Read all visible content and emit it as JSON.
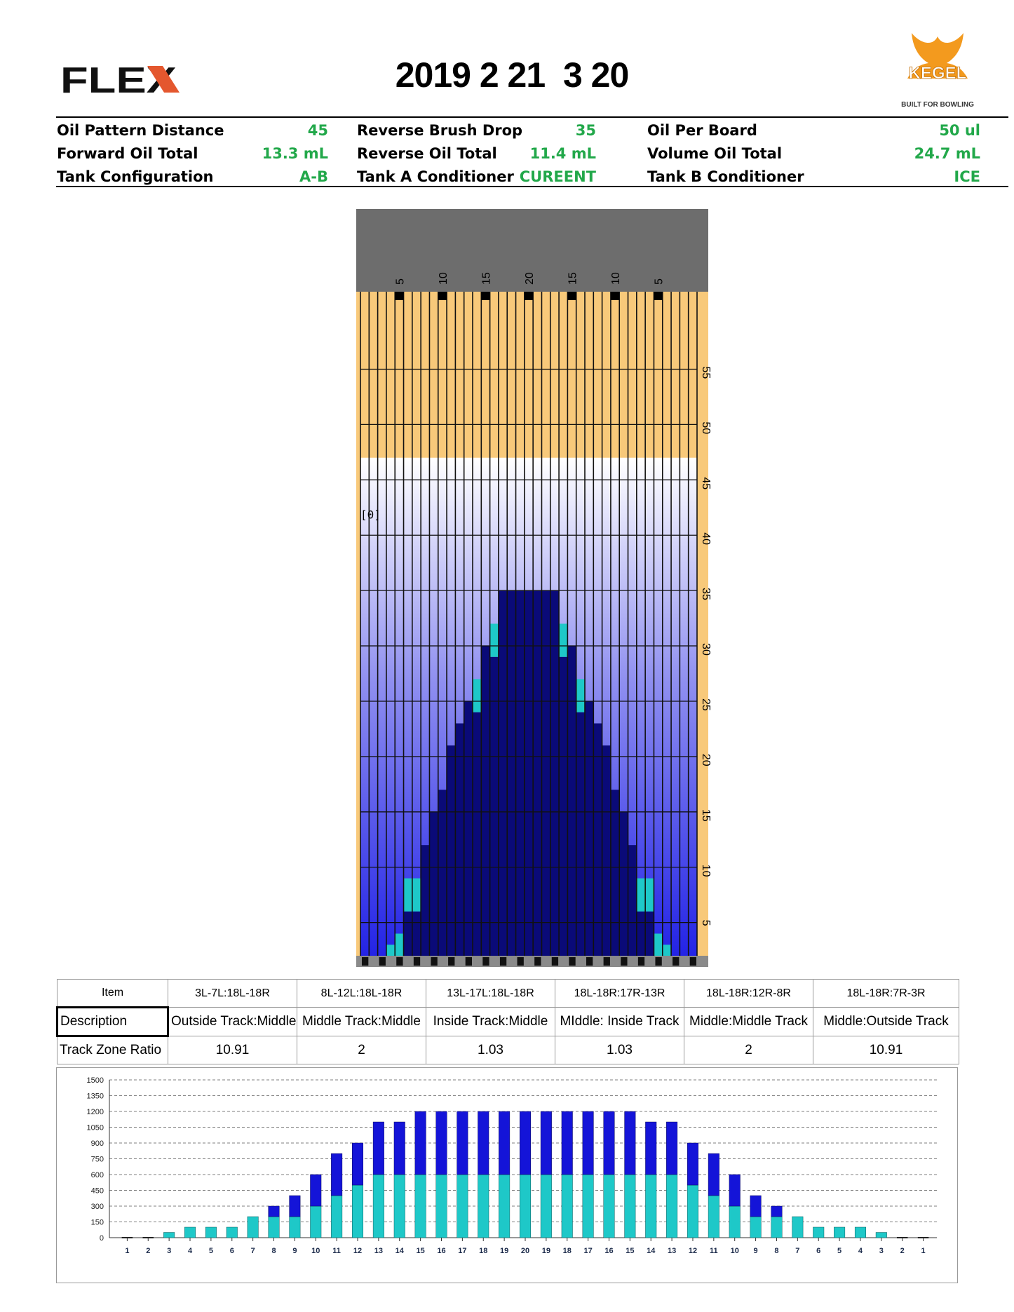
{
  "header": {
    "brand_left": "FLEX",
    "title": "2019 2 21  3 20",
    "brand_right": "KEGEL",
    "brand_right_tagline": "BUILT FOR BOWLING"
  },
  "summary": [
    {
      "label": "Oil Pattern Distance",
      "value": "45"
    },
    {
      "label": "Reverse Brush Drop",
      "value": "35"
    },
    {
      "label": "Oil Per Board",
      "value": "50 ul"
    },
    {
      "label": "Forward Oil Total",
      "value": "13.3 mL"
    },
    {
      "label": "Reverse Oil Total",
      "value": "11.4 mL"
    },
    {
      "label": "Volume Oil Total",
      "value": "24.7 mL"
    },
    {
      "label": "Tank Configuration",
      "value": "A-B"
    },
    {
      "label": "Tank A Conditioner",
      "value": "CUREENT"
    },
    {
      "label": "Tank B Conditioner",
      "value": "ICE"
    }
  ],
  "colors": {
    "accent_value": "#22a84a",
    "dry_lane": "#f8c97a",
    "header_gray": "#6d6d6d",
    "oil_heavy": "#0a0a78",
    "oil_track": "#1414d8",
    "oil_light": "#1ec8c8",
    "forward_bar": "#1ec8c8",
    "reverse_bar": "#1414d8"
  },
  "chart_data": [
    {
      "type": "heatmap",
      "title": "",
      "top_labels": [
        "5",
        "10",
        "15",
        "20",
        "15",
        "10",
        "5"
      ],
      "right_labels": [
        "55",
        "50",
        "45",
        "40",
        "35",
        "30",
        "25",
        "20",
        "15",
        "10",
        "5"
      ],
      "ylim": [
        0,
        60
      ],
      "boards": 39,
      "oil_length_ft": 45,
      "reverse_brush_drop_ft": 35,
      "side_marker": "[0]",
      "board_oil_length_ft": [
        0,
        0,
        0,
        1,
        2,
        7,
        7,
        10,
        13,
        15,
        19,
        21,
        23,
        25,
        28,
        30,
        33,
        33,
        33,
        33,
        33,
        33,
        33,
        30,
        28,
        25,
        23,
        21,
        19,
        15,
        13,
        10,
        7,
        7,
        2,
        1,
        0,
        0,
        0
      ],
      "board_tip_color": [
        "none",
        "none",
        "none",
        "light",
        "light",
        "light",
        "light",
        "heavy",
        "heavy",
        "heavy",
        "heavy",
        "heavy",
        "heavy",
        "light",
        "heavy",
        "light",
        "heavy",
        "heavy",
        "heavy",
        "heavy",
        "heavy",
        "heavy",
        "heavy",
        "light",
        "heavy",
        "light",
        "heavy",
        "heavy",
        "heavy",
        "heavy",
        "heavy",
        "heavy",
        "light",
        "light",
        "light",
        "light",
        "none",
        "none",
        "none"
      ]
    },
    {
      "type": "table",
      "columns": [
        "Item",
        "3L-7L:18L-18R",
        "8L-12L:18L-18R",
        "13L-17L:18L-18R",
        "18L-18R:17R-13R",
        "18L-18R:12R-8R",
        "18L-18R:7R-3R"
      ],
      "rows": [
        [
          "Description",
          "Outside Track:Middle",
          "Middle Track:Middle",
          "Inside Track:Middle",
          "MIddle: Inside Track",
          "Middle:Middle Track",
          "Middle:Outside Track"
        ],
        [
          "Track Zone Ratio",
          "10.91",
          "2",
          "1.03",
          "1.03",
          "2",
          "10.91"
        ]
      ]
    },
    {
      "type": "bar",
      "stacked": true,
      "ylim": [
        0,
        1500
      ],
      "yticks": [
        "1500",
        "1350",
        "1200",
        "1050",
        "900",
        "750",
        "600",
        "450",
        "300",
        "150",
        "0"
      ],
      "categories": [
        "1",
        "2",
        "3",
        "4",
        "5",
        "6",
        "7",
        "8",
        "9",
        "10",
        "11",
        "12",
        "13",
        "14",
        "15",
        "16",
        "17",
        "18",
        "19",
        "20",
        "19",
        "18",
        "17",
        "16",
        "15",
        "14",
        "13",
        "12",
        "11",
        "10",
        "9",
        "8",
        "7",
        "6",
        "5",
        "4",
        "3",
        "2",
        "1"
      ],
      "series": [
        {
          "values": [
            0,
            0,
            50,
            100,
            100,
            100,
            200,
            200,
            200,
            300,
            400,
            500,
            600,
            600,
            600,
            600,
            600,
            600,
            600,
            600,
            600,
            600,
            600,
            600,
            600,
            600,
            600,
            500,
            400,
            300,
            200,
            200,
            200,
            100,
            100,
            100,
            50,
            0,
            0
          ]
        },
        {
          "values": [
            0,
            0,
            0,
            0,
            0,
            0,
            0,
            100,
            200,
            300,
            400,
            400,
            500,
            500,
            600,
            600,
            600,
            600,
            600,
            600,
            600,
            600,
            600,
            600,
            600,
            500,
            500,
            400,
            400,
            300,
            200,
            100,
            0,
            0,
            0,
            0,
            0,
            0,
            0
          ]
        }
      ],
      "grid": true
    }
  ]
}
